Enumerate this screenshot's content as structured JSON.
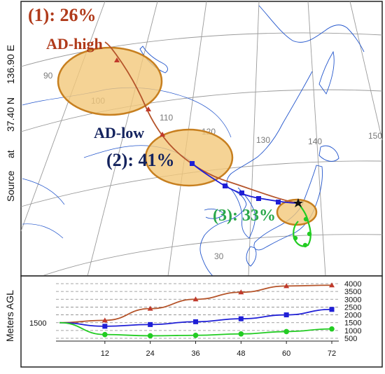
{
  "source": {
    "label": "Source",
    "at": "at",
    "lat": "37.40 N",
    "lon": "136.90 E"
  },
  "graticule_labels": {
    "lon": [
      "90",
      "100",
      "110",
      "120",
      "130",
      "140",
      "150"
    ],
    "lat": [
      "30"
    ]
  },
  "clusters": [
    {
      "id": "1",
      "label": "(1): 26%",
      "name": "AD-high",
      "color": "#b03a1a",
      "name_color": "#b03a1a"
    },
    {
      "id": "2",
      "label": "(2): 41%",
      "name": "AD-low",
      "color": "#14235e",
      "name_color": "#14235e"
    },
    {
      "id": "3",
      "label": "(3): 33%",
      "name": "",
      "color": "#2aa84a",
      "name_color": "#2aa84a"
    }
  ],
  "colors": {
    "cluster1_line": "#b5542a",
    "cluster2_line": "#1f1fd6",
    "cluster3_line": "#22cc22",
    "ellipse_fill": "#f2c87a",
    "ellipse_stroke": "#c77f1f",
    "coast": "#2255cc",
    "graticule": "#9a9a9a"
  },
  "elevation_panel": {
    "ylabel": "Meters AGL",
    "left_tick": "1500",
    "y_ticks": [
      "4000",
      "3500",
      "3000",
      "2500",
      "2000",
      "1500",
      "1000",
      "500"
    ],
    "x_ticks": [
      "12",
      "24",
      "36",
      "48",
      "60",
      "72"
    ],
    "series": [
      {
        "cluster": "1",
        "marker": "triangle",
        "hours": [
          0,
          12,
          24,
          36,
          48,
          60,
          72
        ],
        "height_m": [
          1500,
          1650,
          2400,
          3000,
          3450,
          3850,
          3900
        ]
      },
      {
        "cluster": "2",
        "marker": "square",
        "hours": [
          0,
          12,
          24,
          36,
          48,
          60,
          72
        ],
        "height_m": [
          1500,
          1270,
          1380,
          1560,
          1750,
          2000,
          2350
        ]
      },
      {
        "cluster": "3",
        "marker": "circle",
        "hours": [
          0,
          12,
          24,
          36,
          48,
          60,
          72
        ],
        "height_m": [
          1500,
          740,
          660,
          690,
          780,
          930,
          1100
        ]
      }
    ]
  }
}
